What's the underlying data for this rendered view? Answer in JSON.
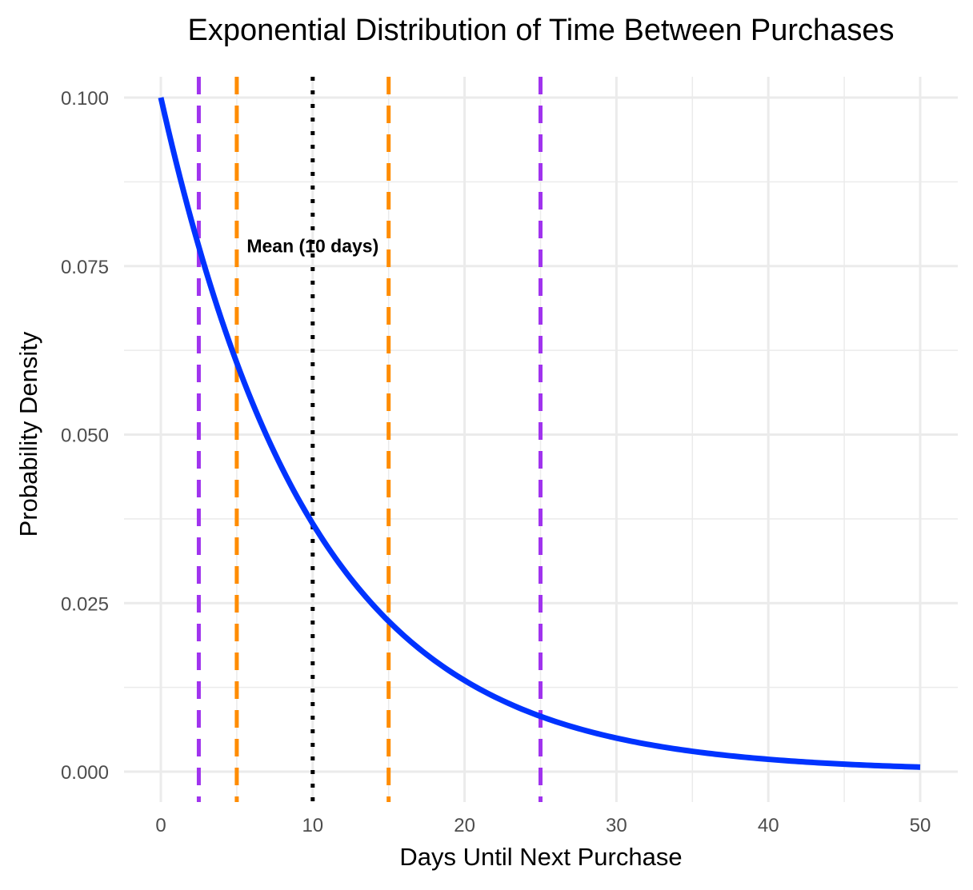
{
  "chart_data": {
    "type": "line",
    "title": "Exponential Distribution of Time Between Purchases",
    "xlabel": "Days Until Next Purchase",
    "ylabel": "Probability Density",
    "xlim": [
      0,
      50
    ],
    "ylim": [
      0,
      0.1
    ],
    "grid": true,
    "x_ticks": [
      0,
      10,
      20,
      30,
      40,
      50
    ],
    "x_tick_labels": [
      "0",
      "10",
      "20",
      "30",
      "40",
      "50"
    ],
    "y_ticks": [
      0,
      0.025,
      0.05,
      0.075,
      0.1
    ],
    "y_tick_labels": [
      "0.000",
      "0.025",
      "0.050",
      "0.075",
      "0.100"
    ],
    "series": [
      {
        "rate": 0.1,
        "color": "#0033ff",
        "x": [
          0,
          2,
          4,
          6,
          8,
          10,
          12,
          14,
          16,
          18,
          20,
          22,
          24,
          26,
          28,
          30,
          32,
          34,
          36,
          38,
          40,
          42,
          44,
          46,
          48,
          50
        ],
        "values": [
          0.1,
          0.0819,
          0.067,
          0.0549,
          0.0449,
          0.0368,
          0.0301,
          0.0247,
          0.0202,
          0.0165,
          0.0135,
          0.0111,
          0.0091,
          0.0074,
          0.0061,
          0.005,
          0.0041,
          0.0033,
          0.0027,
          0.0022,
          0.0018,
          0.0015,
          0.0012,
          0.001,
          0.0008,
          0.0007
        ]
      }
    ],
    "reference_lines": [
      {
        "x": 2.5,
        "color": "#a033ee",
        "style": "dashed"
      },
      {
        "x": 5,
        "color": "#ff8c00",
        "style": "dashed"
      },
      {
        "x": 10,
        "color": "#000000",
        "style": "dotted"
      },
      {
        "x": 15,
        "color": "#ff8c00",
        "style": "dashed"
      },
      {
        "x": 25,
        "color": "#a033ee",
        "style": "dashed"
      }
    ],
    "annotations": [
      {
        "text": "Mean (10 days)",
        "x": 10,
        "y": 0.078
      }
    ]
  }
}
